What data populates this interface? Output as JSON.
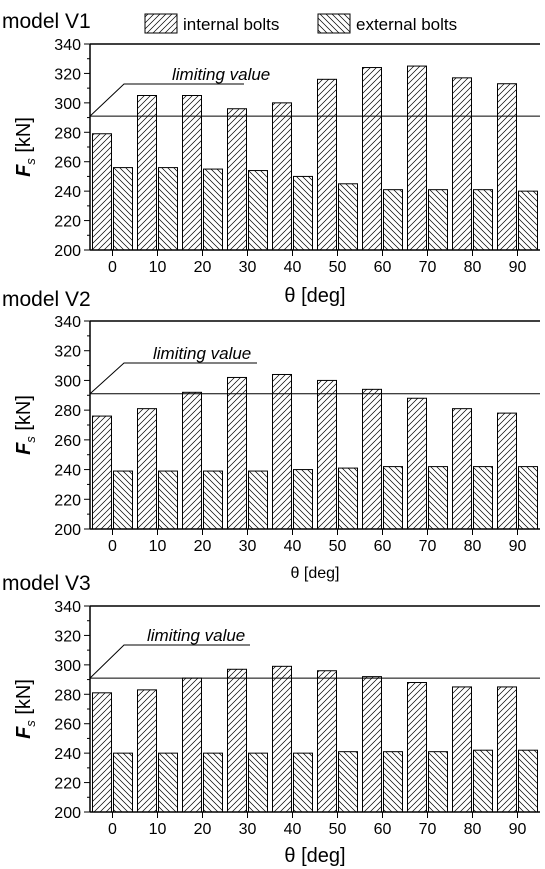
{
  "legend": [
    {
      "label": "internal bolts",
      "pattern": "hatch-right"
    },
    {
      "label": "external bolts",
      "pattern": "hatch-left"
    }
  ],
  "limiting_value_label": "limiting value",
  "colors": {
    "ink": "#000000",
    "background": "#ffffff"
  },
  "chart_data": [
    {
      "type": "bar",
      "title": "model V1",
      "xlabel": "θ [deg]",
      "ylabel": "F_s [kN]",
      "categories": [
        "0",
        "10",
        "20",
        "30",
        "40",
        "50",
        "60",
        "70",
        "80",
        "90"
      ],
      "series": [
        {
          "name": "internal bolts",
          "values": [
            279,
            305,
            305,
            296,
            300,
            316,
            324,
            325,
            317,
            313
          ]
        },
        {
          "name": "external bolts",
          "values": [
            256,
            256,
            255,
            254,
            250,
            245,
            241,
            241,
            241,
            240
          ]
        }
      ],
      "ylim": [
        200,
        340
      ],
      "yticks": [
        200,
        220,
        240,
        260,
        280,
        300,
        320,
        340
      ],
      "limiting_value": 291
    },
    {
      "type": "bar",
      "title": "model V2",
      "xlabel": "θ [deg]",
      "ylabel": "F_s [kN]",
      "categories": [
        "0",
        "10",
        "20",
        "30",
        "40",
        "50",
        "60",
        "70",
        "80",
        "90"
      ],
      "series": [
        {
          "name": "internal bolts",
          "values": [
            276,
            281,
            292,
            302,
            304,
            300,
            294,
            288,
            281,
            278
          ]
        },
        {
          "name": "external bolts",
          "values": [
            239,
            239,
            239,
            239,
            240,
            241,
            242,
            242,
            242,
            242
          ]
        }
      ],
      "ylim": [
        200,
        340
      ],
      "yticks": [
        200,
        220,
        240,
        260,
        280,
        300,
        320,
        340
      ],
      "limiting_value": 291
    },
    {
      "type": "bar",
      "title": "model V3",
      "xlabel": "θ [deg]",
      "ylabel": "F_s [kN]",
      "categories": [
        "0",
        "10",
        "20",
        "30",
        "40",
        "50",
        "60",
        "70",
        "80",
        "90"
      ],
      "series": [
        {
          "name": "internal bolts",
          "values": [
            281,
            283,
            291,
            297,
            299,
            296,
            292,
            288,
            285,
            285
          ]
        },
        {
          "name": "external bolts",
          "values": [
            240,
            240,
            240,
            240,
            240,
            241,
            241,
            241,
            242,
            242
          ]
        }
      ],
      "ylim": [
        200,
        340
      ],
      "yticks": [
        200,
        220,
        240,
        260,
        280,
        300,
        320,
        340
      ],
      "limiting_value": 291
    }
  ]
}
